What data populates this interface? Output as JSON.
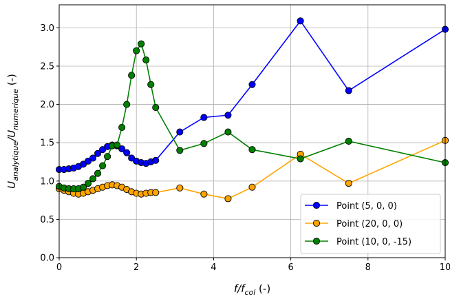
{
  "chart_data": {
    "type": "line",
    "title": "",
    "xlabel": {
      "base": "f/f",
      "sub": "col",
      "suffix": " (-)"
    },
    "ylabel": {
      "pre": "U",
      "sub1": "analytique",
      "mid": "/U",
      "sub2": "numerique",
      "suffix": "  (-)"
    },
    "xlim": [
      0,
      10
    ],
    "ylim": [
      0,
      3.3
    ],
    "xticks": [
      0,
      2,
      4,
      6,
      8,
      10
    ],
    "xtick_labels": [
      "0",
      "2",
      "4",
      "6",
      "8",
      "10"
    ],
    "yticks": [
      0,
      0.5,
      1.0,
      1.5,
      2.0,
      2.5,
      3.0
    ],
    "ytick_labels": [
      "0.0",
      "0.5",
      "1.0",
      "1.5",
      "2.0",
      "2.5",
      "3.0"
    ],
    "grid": true,
    "legend_position": "bottom-right",
    "series": [
      {
        "name": "Point (5, 0, 0)",
        "color": "#0000ff",
        "x": [
          0.0,
          0.125,
          0.25,
          0.375,
          0.5,
          0.625,
          0.75,
          0.875,
          1.0,
          1.125,
          1.25,
          1.375,
          1.5,
          1.625,
          1.75,
          1.875,
          2.0,
          2.125,
          2.25,
          2.375,
          2.5,
          3.125,
          3.75,
          4.375,
          5.0,
          6.25,
          7.5,
          10.0
        ],
        "y": [
          1.15,
          1.15,
          1.16,
          1.17,
          1.19,
          1.22,
          1.26,
          1.3,
          1.36,
          1.41,
          1.45,
          1.47,
          1.46,
          1.42,
          1.37,
          1.3,
          1.26,
          1.24,
          1.23,
          1.25,
          1.27,
          1.64,
          1.83,
          1.86,
          2.26,
          3.09,
          2.18,
          2.98
        ]
      },
      {
        "name": "Point (20, 0, 0)",
        "color": "#ffa500",
        "x": [
          0.0,
          0.125,
          0.25,
          0.375,
          0.5,
          0.625,
          0.75,
          0.875,
          1.0,
          1.125,
          1.25,
          1.375,
          1.5,
          1.625,
          1.75,
          1.875,
          2.0,
          2.125,
          2.25,
          2.375,
          2.5,
          3.125,
          3.75,
          4.375,
          5.0,
          6.25,
          7.5,
          10.0
        ],
        "y": [
          0.9,
          0.88,
          0.86,
          0.84,
          0.83,
          0.84,
          0.86,
          0.88,
          0.9,
          0.92,
          0.94,
          0.95,
          0.94,
          0.92,
          0.89,
          0.86,
          0.84,
          0.83,
          0.84,
          0.85,
          0.85,
          0.91,
          0.83,
          0.77,
          0.92,
          1.35,
          0.97,
          1.53
        ]
      },
      {
        "name": "Point (10, 0, -15)",
        "color": "#008000",
        "x": [
          0.0,
          0.125,
          0.25,
          0.375,
          0.5,
          0.625,
          0.75,
          0.875,
          1.0,
          1.125,
          1.25,
          1.375,
          1.5,
          1.625,
          1.75,
          1.875,
          2.0,
          2.125,
          2.25,
          2.375,
          2.5,
          3.125,
          3.75,
          4.375,
          5.0,
          6.25,
          7.5,
          10.0
        ],
        "y": [
          0.93,
          0.91,
          0.9,
          0.9,
          0.9,
          0.92,
          0.97,
          1.03,
          1.1,
          1.2,
          1.32,
          1.46,
          1.47,
          1.7,
          2.0,
          2.38,
          2.7,
          2.79,
          2.58,
          2.26,
          1.96,
          1.4,
          1.49,
          1.64,
          1.41,
          1.29,
          1.52,
          1.24
        ]
      }
    ]
  }
}
